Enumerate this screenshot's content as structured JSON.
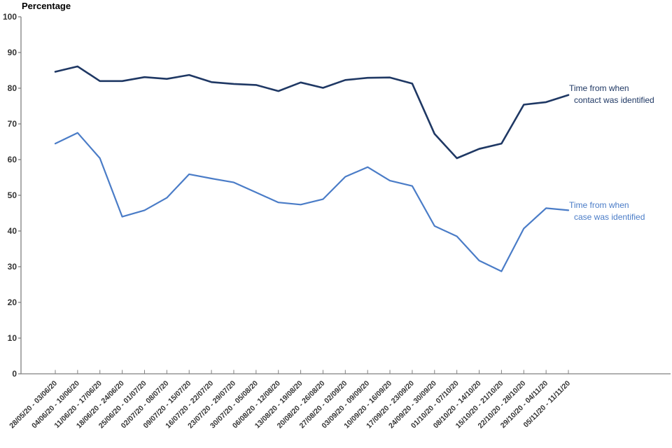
{
  "chart_data": {
    "type": "line",
    "title": "Percentage",
    "categories": [
      "28/05/20 - 03/06/20",
      "04/06/20 - 10/06/20",
      "11/06/20 - 17/06/20",
      "18/06/20 - 24/06/20",
      "25/06/20 - 01/07/20",
      "02/07/20 - 08/07/20",
      "09/07/20 - 15/07/20",
      "16/07/20 - 22/07/20",
      "23/07/20 - 29/07/20",
      "30/07/20 - 05/08/20",
      "06/08/20 - 12/08/20",
      "13/08/20 - 19/08/20",
      "20/08/20 - 26/08/20",
      "27/08/20 - 02/09/20",
      "03/09/20 - 09/09/20",
      "10/09/20 - 16/09/20",
      "17/09/20 - 23/09/20",
      "24/09/20 - 30/09/20",
      "01/10/20 - 07/10/20",
      "08/10/20 - 14/10/20",
      "15/10/20 - 21/10/20",
      "22/10/20 - 28/10/20",
      "29/10/20 - 04/11/20",
      "05/11/20 - 11/11/20"
    ],
    "series": [
      {
        "name": "Time from when contact was identified",
        "color": "#1f3864",
        "stroke_width": 2.6,
        "values": [
          84.6,
          86.1,
          82.0,
          82.0,
          83.1,
          82.6,
          83.7,
          81.7,
          81.2,
          80.9,
          79.2,
          81.6,
          80.1,
          82.3,
          82.9,
          83.0,
          81.3,
          67.2,
          60.4,
          63.0,
          64.5,
          75.4,
          76.1,
          78.1
        ]
      },
      {
        "name": "Time from when case was identified",
        "color": "#4a7cc7",
        "stroke_width": 2.2,
        "values": [
          64.5,
          67.5,
          60.4,
          44.0,
          45.8,
          49.3,
          55.9,
          54.7,
          53.6,
          50.8,
          48.0,
          47.4,
          48.9,
          55.2,
          57.9,
          54.1,
          52.6,
          41.4,
          38.5,
          31.7,
          28.7,
          40.7,
          46.4,
          45.8
        ]
      }
    ],
    "xlabel": "",
    "ylabel": "Percentage",
    "ylim": [
      0,
      100
    ],
    "ytick_step": 10,
    "grid": false,
    "legend_position": "line-end-labels-right",
    "axis_color": "#808080"
  },
  "legend": {
    "contact": {
      "line1": "Time from when",
      "line2": "contact was identified",
      "color": "#1f3864"
    },
    "case": {
      "line1": "Time from when",
      "line2": "case was identified",
      "color": "#4a7cc7"
    }
  }
}
